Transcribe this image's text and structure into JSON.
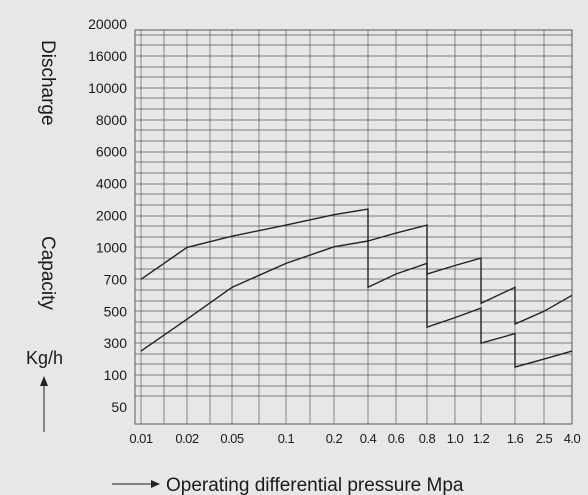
{
  "chart_data": {
    "type": "line",
    "title": "",
    "xlabel": "Operating differential pressure Mpa",
    "ylabel_parts": [
      "Discharge",
      "Capacity",
      "Kg/h"
    ],
    "x_ticks": [
      "0.01",
      "0.02",
      "0.05",
      "0.1",
      "0.2",
      "0.4",
      "0.6",
      "0.8",
      "1.0",
      "1.2",
      "1.6",
      "2.5",
      "4.0"
    ],
    "y_ticks": [
      "20000",
      "16000",
      "10000",
      "8000",
      "6000",
      "4000",
      "2000",
      "1000",
      "700",
      "500",
      "300",
      "100",
      "50"
    ],
    "x_scale": "log",
    "grid": true,
    "series": [
      {
        "points": [
          [
            0.01,
            700
          ],
          [
            0.02,
            1000
          ],
          [
            0.05,
            1350
          ],
          [
            0.1,
            1700
          ],
          [
            0.2,
            2050
          ],
          [
            0.4,
            2400
          ],
          [
            0.4,
            1200
          ],
          [
            0.6,
            1450
          ],
          [
            0.8,
            1700
          ],
          [
            0.8,
            750
          ],
          [
            1.0,
            830
          ],
          [
            1.2,
            900
          ],
          [
            1.2,
            550
          ],
          [
            1.6,
            650
          ],
          [
            1.6,
            420
          ],
          [
            2.5,
            500
          ],
          [
            4.0,
            600
          ]
        ]
      },
      {
        "points": [
          [
            0.01,
            250
          ],
          [
            0.02,
            450
          ],
          [
            0.05,
            650
          ],
          [
            0.1,
            850
          ],
          [
            0.2,
            1020
          ],
          [
            0.4,
            1200
          ],
          [
            0.4,
            650
          ],
          [
            0.6,
            750
          ],
          [
            0.8,
            850
          ],
          [
            0.8,
            400
          ],
          [
            1.0,
            460
          ],
          [
            1.2,
            520
          ],
          [
            1.2,
            300
          ],
          [
            1.6,
            360
          ],
          [
            1.6,
            150
          ],
          [
            2.5,
            200
          ],
          [
            4.0,
            250
          ]
        ]
      }
    ]
  },
  "colors": {
    "background": "#e7e7e7",
    "grid": "#5a5a5a",
    "line": "#222222"
  }
}
